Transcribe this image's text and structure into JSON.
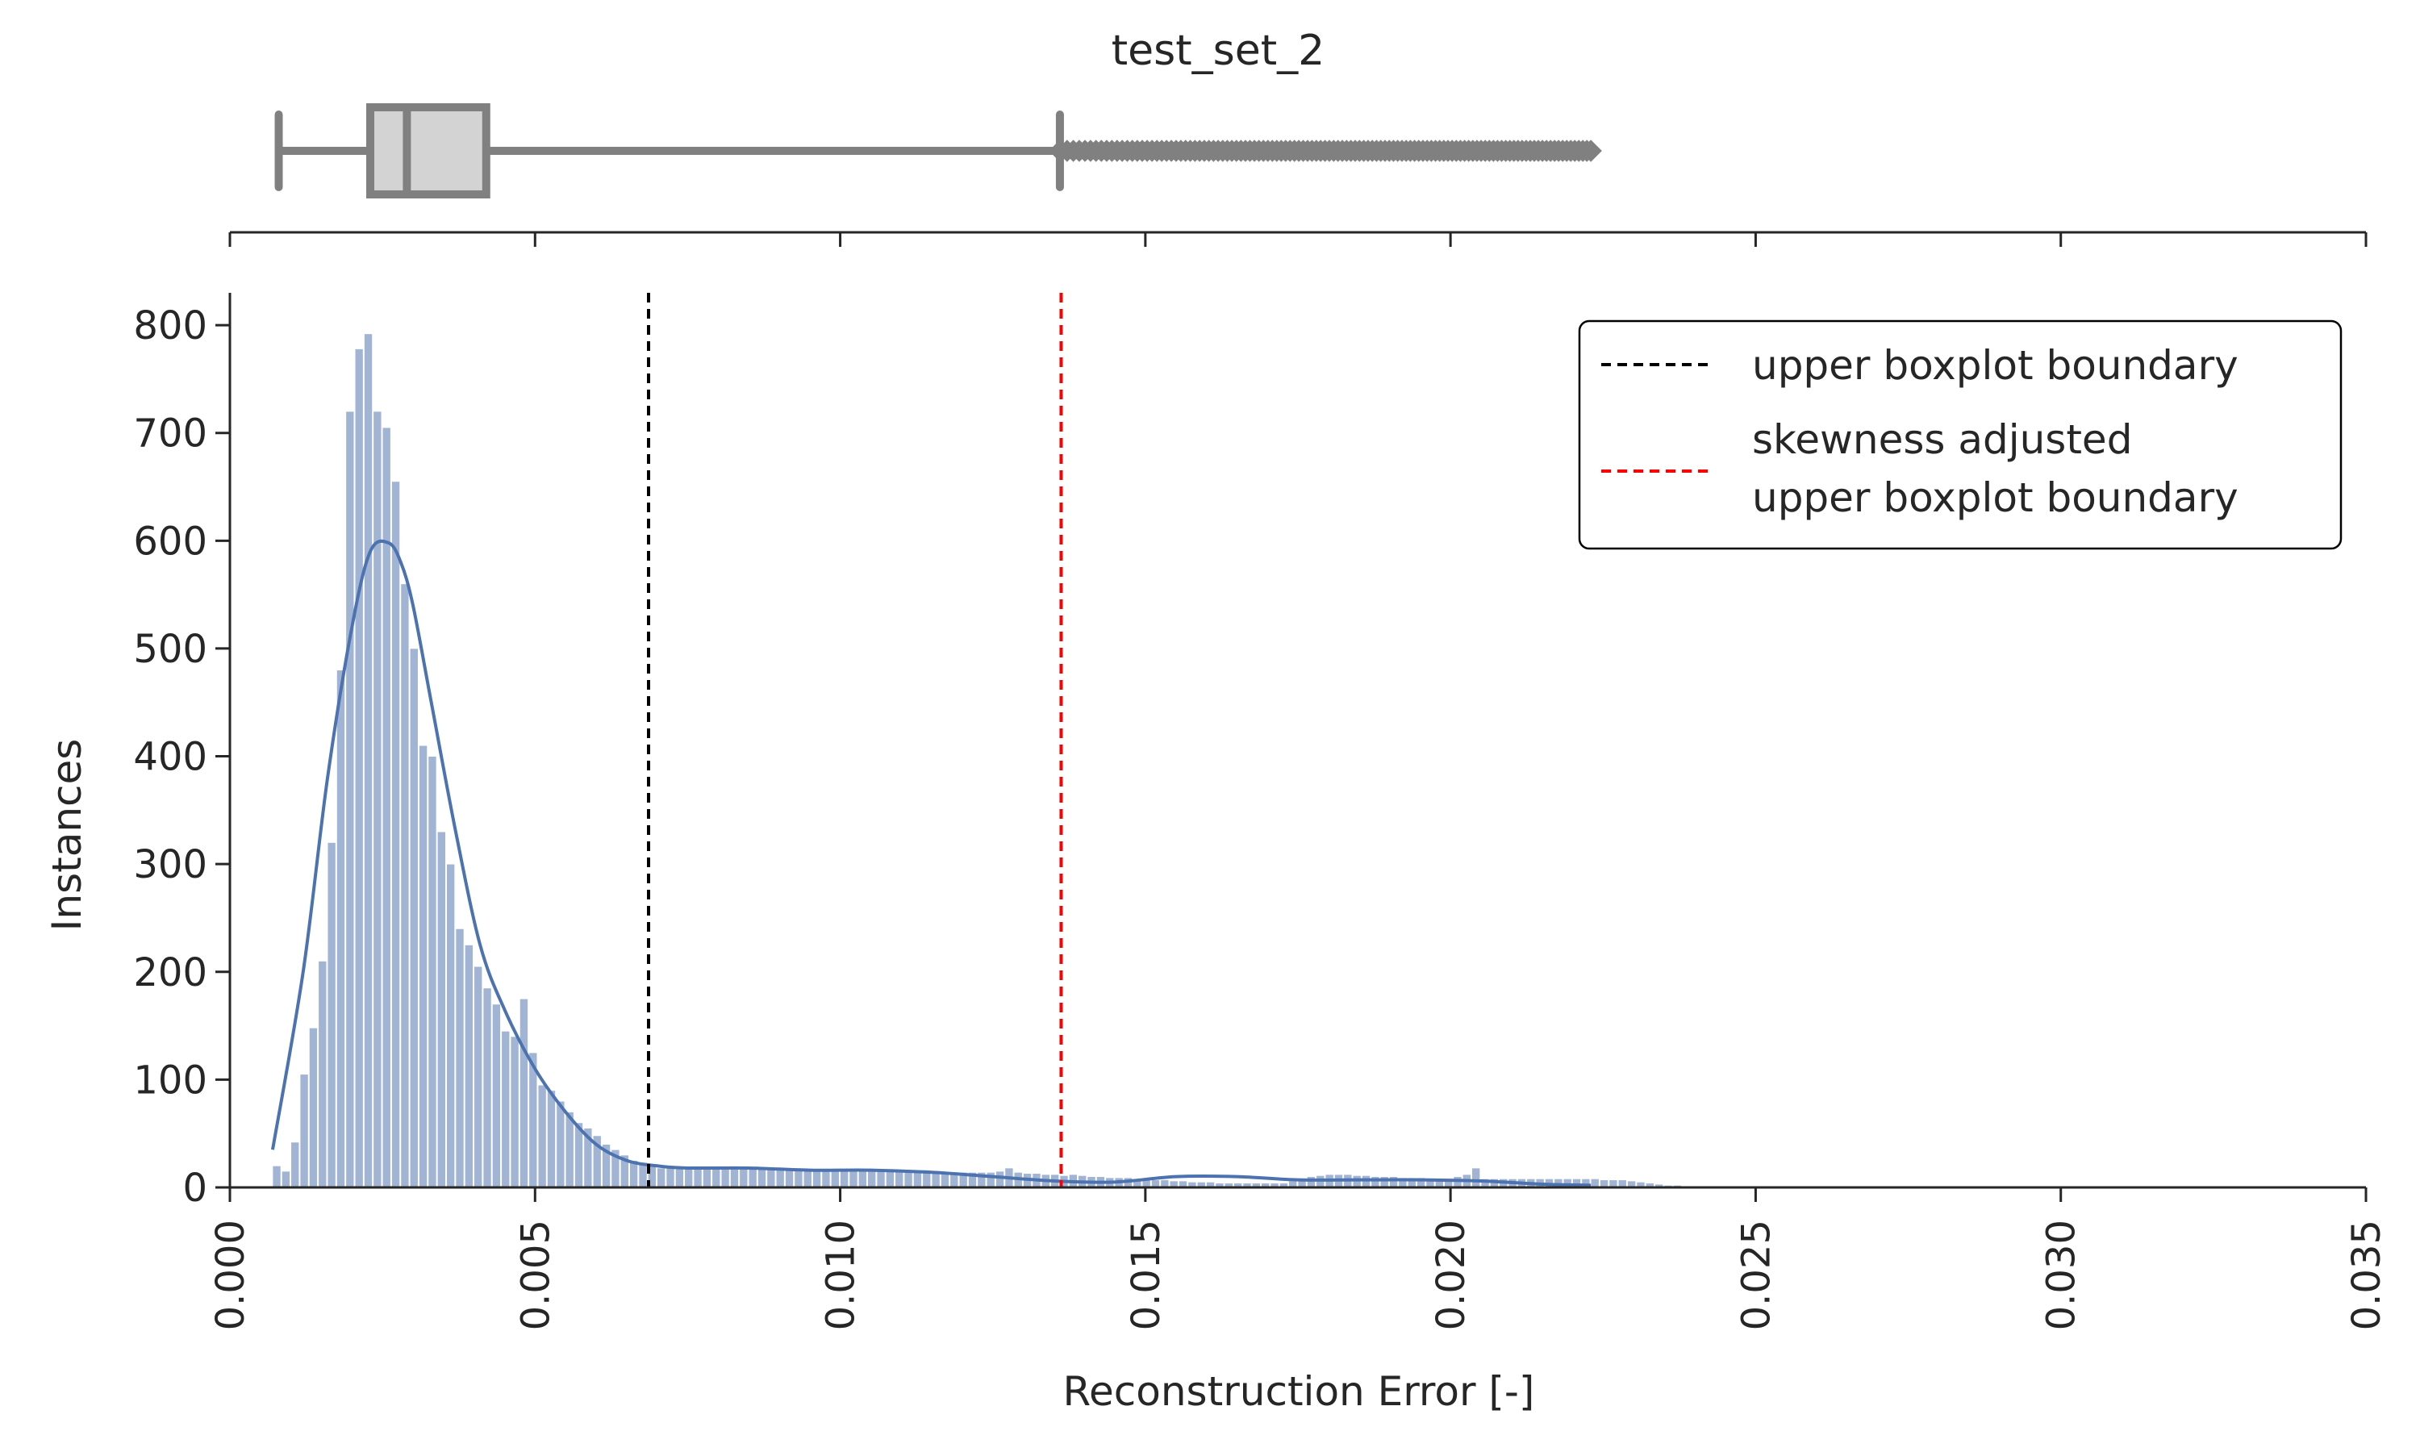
{
  "chart_data": [
    {
      "type": "boxplot",
      "title": "test_set_2",
      "min": 0.0008,
      "q1": 0.0023,
      "median": 0.0029,
      "q3": 0.0042,
      "whisker_high": 0.0136,
      "outlier_range": [
        0.0136,
        0.0223
      ],
      "xlim": [
        0.0,
        0.035
      ],
      "box_color": "#d3d3d3",
      "line_color": "#808080"
    },
    {
      "type": "bar",
      "xlabel": "Reconstruction Error [-]",
      "ylabel": "Instances",
      "xlim": [
        0.0,
        0.035
      ],
      "ylim": [
        0,
        830
      ],
      "xticks": [
        "0.000",
        "0.005",
        "0.010",
        "0.015",
        "0.020",
        "0.025",
        "0.030",
        "0.035"
      ],
      "yticks": [
        "0",
        "100",
        "200",
        "300",
        "400",
        "500",
        "600",
        "700",
        "800"
      ],
      "bin_start": 0.0007,
      "bin_width": 0.00015,
      "values": [
        20,
        15,
        42,
        105,
        148,
        210,
        320,
        480,
        720,
        778,
        792,
        720,
        705,
        655,
        560,
        500,
        410,
        400,
        330,
        300,
        240,
        225,
        205,
        185,
        170,
        145,
        140,
        175,
        125,
        95,
        90,
        80,
        70,
        60,
        55,
        48,
        40,
        35,
        30,
        25,
        22,
        20,
        18,
        18,
        18,
        18,
        18,
        18,
        18,
        18,
        18,
        18,
        18,
        18,
        18,
        18,
        17,
        17,
        17,
        17,
        17,
        16,
        16,
        16,
        16,
        15,
        15,
        15,
        15,
        15,
        15,
        14,
        14,
        14,
        14,
        14,
        14,
        14,
        14,
        15,
        18,
        14,
        13,
        13,
        12,
        12,
        11,
        12,
        11,
        10,
        10,
        9,
        9,
        9,
        8,
        8,
        7,
        7,
        6,
        6,
        5,
        5,
        5,
        4,
        4,
        4,
        4,
        4,
        4,
        4,
        4,
        6,
        8,
        10,
        11,
        12,
        12,
        12,
        11,
        11,
        10,
        10,
        10,
        9,
        9,
        9,
        8,
        8,
        8,
        10,
        12,
        18,
        8,
        8,
        8,
        8,
        8,
        8,
        8,
        8,
        8,
        8,
        8,
        8,
        8,
        7,
        7,
        7,
        6,
        5,
        4,
        3,
        2,
        2,
        1,
        1
      ],
      "kde": {
        "x": [
          0.0007,
          0.0012,
          0.0016,
          0.002,
          0.0023,
          0.0026,
          0.0028,
          0.003,
          0.0033,
          0.0037,
          0.0041,
          0.0045,
          0.005,
          0.0055,
          0.006,
          0.0065,
          0.007,
          0.0075,
          0.0085,
          0.0095,
          0.0105,
          0.0115,
          0.0125,
          0.0135,
          0.0145,
          0.0155,
          0.0165,
          0.0175,
          0.0185,
          0.0195,
          0.0205,
          0.0215,
          0.0223
        ],
        "y": [
          35,
          200,
          380,
          520,
          590,
          598,
          580,
          540,
          450,
          330,
          225,
          165,
          110,
          70,
          40,
          25,
          20,
          18,
          18,
          16,
          16,
          14,
          10,
          6,
          5,
          10,
          10,
          7,
          7,
          7,
          6,
          3,
          2
        ],
        "color": "#4c72b0"
      },
      "bar_color": "#a1b4d4",
      "vlines": [
        {
          "x": 0.00686,
          "color": "#000000",
          "style": "dashed",
          "label": "upper boxplot boundary"
        },
        {
          "x": 0.01362,
          "color": "#ff0000",
          "style": "dashed",
          "label_lines": [
            "skewness adjusted",
            "upper boxplot boundary"
          ]
        }
      ],
      "legend_position": "upper right"
    }
  ]
}
